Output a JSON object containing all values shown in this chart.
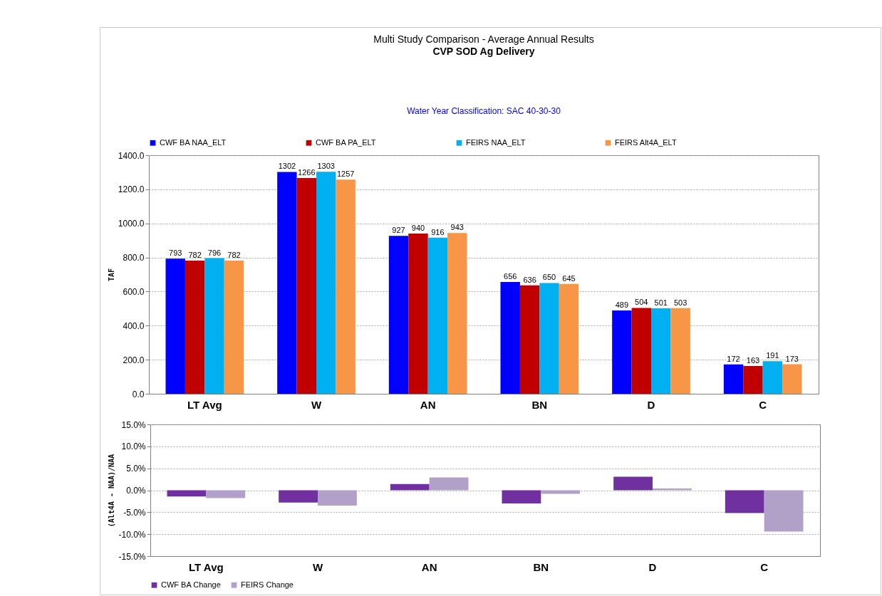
{
  "chart_data": [
    {
      "type": "bar",
      "title": "Multi Study Comparison -  Average Annual Results",
      "subtitle": "CVP SOD Ag Delivery",
      "annotations": [
        "Water Year Classification: SAC 40-30-30"
      ],
      "ylabel": "TAF",
      "categories": [
        "LT Avg",
        "W",
        "AN",
        "BN",
        "D",
        "C"
      ],
      "series": [
        {
          "name": "CWF BA NAA_ELT",
          "color": "#0000ff",
          "values": [
            793,
            1302,
            927,
            656,
            489,
            172
          ]
        },
        {
          "name": "CWF BA PA_ELT",
          "color": "#c00000",
          "values": [
            782,
            1266,
            940,
            636,
            504,
            163
          ]
        },
        {
          "name": "FEIRS NAA_ELT",
          "color": "#00b0f0",
          "values": [
            796,
            1303,
            916,
            650,
            501,
            191
          ]
        },
        {
          "name": "FEIRS Alt4A_ELT",
          "color": "#f79646",
          "values": [
            782,
            1257,
            943,
            645,
            503,
            173
          ]
        }
      ],
      "ylim": [
        0,
        1400
      ],
      "yticks": [
        {
          "value": 0,
          "label": "0.0"
        },
        {
          "value": 200,
          "label": "200.0"
        },
        {
          "value": 400,
          "label": "400.0"
        },
        {
          "value": 600,
          "label": "600.0"
        },
        {
          "value": 800,
          "label": "800.0"
        },
        {
          "value": 1000,
          "label": "1000.0"
        },
        {
          "value": 1200,
          "label": "1200.0"
        },
        {
          "value": 1400,
          "label": "1400.0"
        }
      ],
      "grid": "y",
      "legend": "top",
      "data_labels": true
    },
    {
      "type": "bar",
      "ylabel": "(Alt4A - NAA)/NAA",
      "categories": [
        "LT Avg",
        "W",
        "AN",
        "BN",
        "D",
        "C"
      ],
      "series": [
        {
          "name": "CWF BA Change",
          "color": "#7030a0",
          "values": [
            -1.4,
            -2.8,
            1.4,
            -3.0,
            3.1,
            -5.2
          ]
        },
        {
          "name": "FEIRS Change",
          "color": "#b1a0c7",
          "values": [
            -1.8,
            -3.5,
            2.9,
            -0.8,
            0.4,
            -9.4
          ]
        }
      ],
      "ylim": [
        -15,
        15
      ],
      "yticks": [
        {
          "value": -15,
          "label": "-15.0%"
        },
        {
          "value": -10,
          "label": "-10.0%"
        },
        {
          "value": -5,
          "label": "-5.0%"
        },
        {
          "value": 0,
          "label": "0.0%"
        },
        {
          "value": 5,
          "label": "5.0%"
        },
        {
          "value": 10,
          "label": "10.0%"
        },
        {
          "value": 15,
          "label": "15.0%"
        }
      ],
      "grid": "y",
      "legend": "bottom"
    }
  ]
}
